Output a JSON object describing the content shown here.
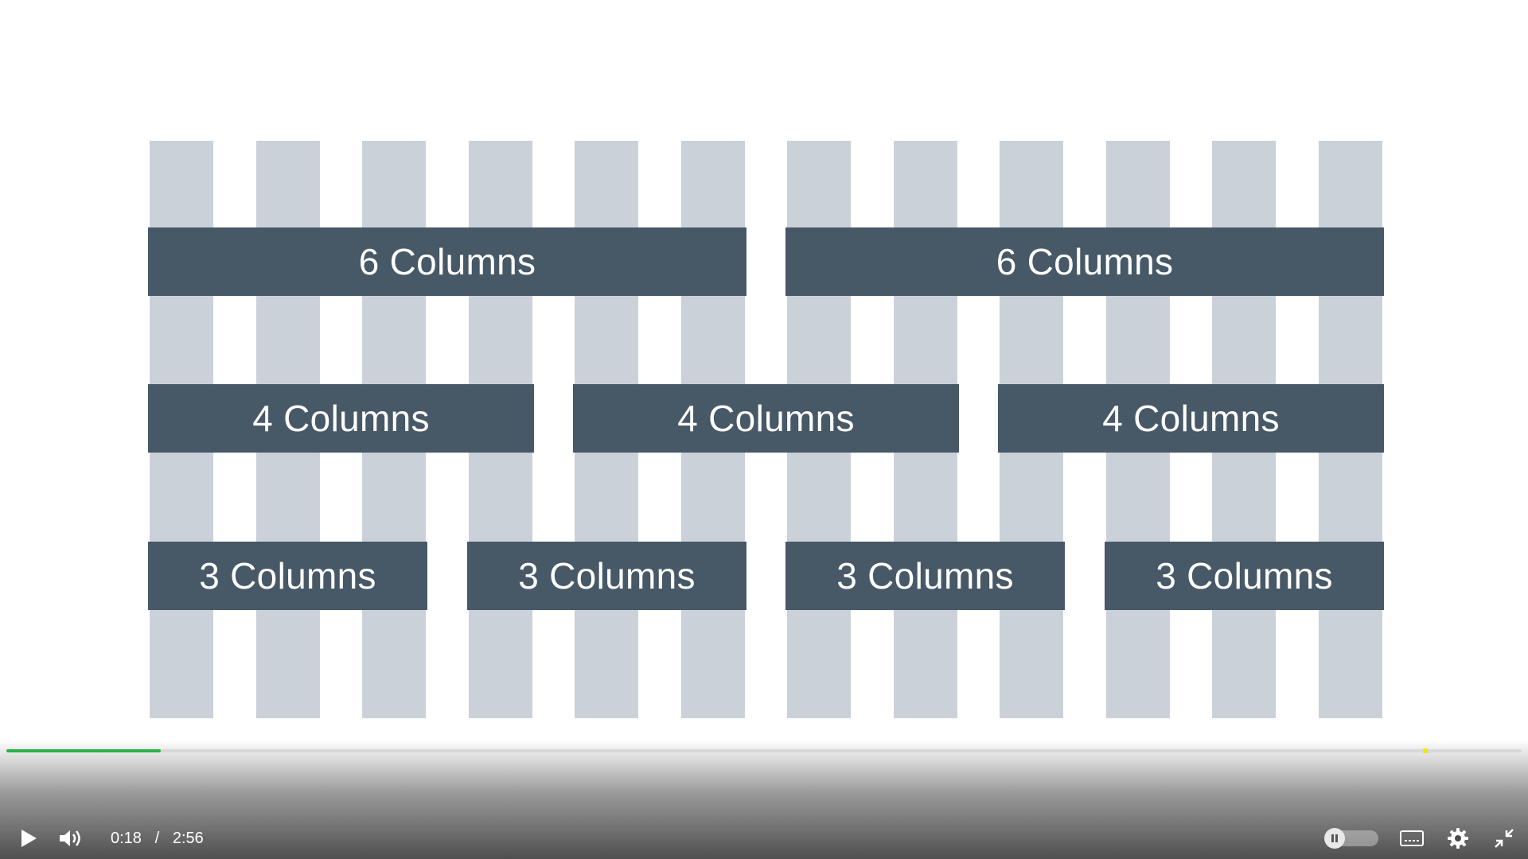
{
  "video": {
    "grid_columns": 12,
    "rows": [
      {
        "name": "six-column-row",
        "span": 6,
        "items": [
          {
            "label": "6 Columns"
          },
          {
            "label": "6 Columns"
          }
        ]
      },
      {
        "name": "four-column-row",
        "span": 4,
        "items": [
          {
            "label": "4 Columns"
          },
          {
            "label": "4 Columns"
          },
          {
            "label": "4 Columns"
          }
        ]
      },
      {
        "name": "three-column-row",
        "span": 3,
        "items": [
          {
            "label": "3 Columns"
          },
          {
            "label": "3 Columns"
          },
          {
            "label": "3 Columns"
          },
          {
            "label": "3 Columns"
          }
        ]
      }
    ],
    "colors": {
      "grid_column": "#cbd1d8",
      "span_bar": "#475867",
      "span_text": "#ffffff"
    }
  },
  "player": {
    "current_time": "0:18",
    "time_separator": "/",
    "duration": "2:56",
    "progress_fraction": 0.102,
    "marker_fraction": 0.935,
    "colors": {
      "progress": "#2bb24c",
      "marker": "#f2e600"
    },
    "icons": {
      "play": "play-icon",
      "volume": "volume-icon",
      "autoplay": "pause-icon",
      "captions": "captions-icon",
      "settings": "gear-icon",
      "fullscreen": "exit-fullscreen-icon"
    }
  }
}
